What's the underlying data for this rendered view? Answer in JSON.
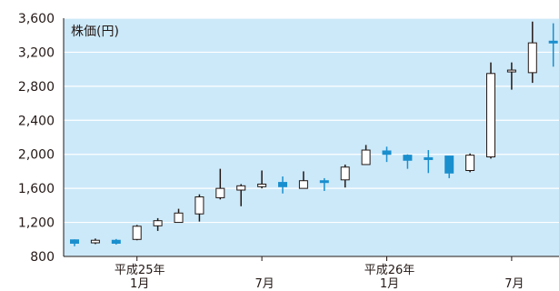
{
  "chart_data": {
    "type": "candlestick",
    "title": "株価(円)",
    "ylim": [
      800,
      3600
    ],
    "yticks": [
      {
        "value": 800,
        "label": "800"
      },
      {
        "value": 1200,
        "label": "1,200"
      },
      {
        "value": 1600,
        "label": "1,600"
      },
      {
        "value": 2000,
        "label": "2,000"
      },
      {
        "value": 2400,
        "label": "2,400"
      },
      {
        "value": 2800,
        "label": "2,800"
      },
      {
        "value": 3200,
        "label": "3,200"
      },
      {
        "value": 3600,
        "label": "3,600"
      }
    ],
    "grid": true,
    "colors": {
      "background": "#cce9f9",
      "grid": "#ffffff",
      "up": "#ffffff",
      "down": "#1a8fce",
      "wick": "#231815",
      "border": "#231815"
    },
    "candles": [
      {
        "open": 995,
        "high": 1000,
        "low": 920,
        "close": 955
      },
      {
        "open": 960,
        "high": 1010,
        "low": 945,
        "close": 990
      },
      {
        "open": 990,
        "high": 1005,
        "low": 940,
        "close": 955
      },
      {
        "open": 1000,
        "high": 1170,
        "low": 990,
        "close": 1155
      },
      {
        "open": 1160,
        "high": 1250,
        "low": 1100,
        "close": 1220
      },
      {
        "open": 1200,
        "high": 1360,
        "low": 1200,
        "close": 1310
      },
      {
        "open": 1300,
        "high": 1530,
        "low": 1210,
        "close": 1500
      },
      {
        "open": 1490,
        "high": 1830,
        "low": 1470,
        "close": 1600
      },
      {
        "open": 1580,
        "high": 1650,
        "low": 1390,
        "close": 1630
      },
      {
        "open": 1620,
        "high": 1810,
        "low": 1600,
        "close": 1650
      },
      {
        "open": 1670,
        "high": 1740,
        "low": 1540,
        "close": 1620
      },
      {
        "open": 1600,
        "high": 1800,
        "low": 1600,
        "close": 1690
      },
      {
        "open": 1690,
        "high": 1720,
        "low": 1570,
        "close": 1680
      },
      {
        "open": 1700,
        "high": 1880,
        "low": 1610,
        "close": 1850
      },
      {
        "open": 1880,
        "high": 2110,
        "low": 1880,
        "close": 2050
      },
      {
        "open": 2040,
        "high": 2090,
        "low": 1910,
        "close": 2000
      },
      {
        "open": 1990,
        "high": 2000,
        "low": 1830,
        "close": 1930
      },
      {
        "open": 1960,
        "high": 2050,
        "low": 1780,
        "close": 1950
      },
      {
        "open": 1980,
        "high": 1980,
        "low": 1720,
        "close": 1780
      },
      {
        "open": 1810,
        "high": 2010,
        "low": 1790,
        "close": 1990
      },
      {
        "open": 1970,
        "high": 3080,
        "low": 1950,
        "close": 2950
      },
      {
        "open": 2970,
        "high": 3080,
        "low": 2760,
        "close": 2990
      },
      {
        "open": 2960,
        "high": 3560,
        "low": 2840,
        "close": 3310
      },
      {
        "open": 3330,
        "high": 3540,
        "low": 3030,
        "close": 3320
      }
    ],
    "xlabels": [
      {
        "index": 3,
        "line1": "平成25年",
        "line2": "1月"
      },
      {
        "index": 9,
        "line1": "",
        "line2": "7月"
      },
      {
        "index": 15,
        "line1": "平成26年",
        "line2": "1月"
      },
      {
        "index": 21,
        "line1": "",
        "line2": "7月"
      }
    ]
  }
}
